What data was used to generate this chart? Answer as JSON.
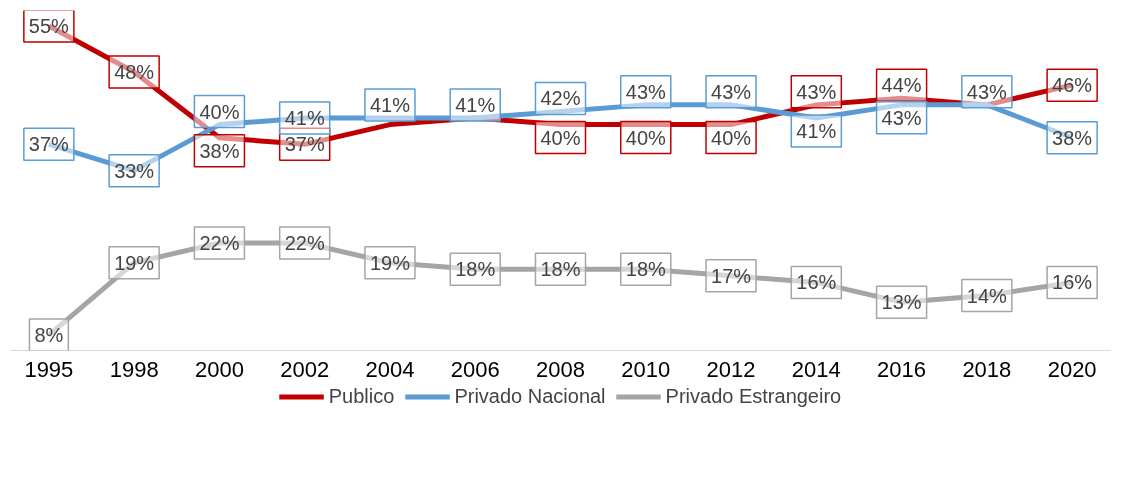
{
  "chart_data": {
    "type": "line",
    "categories": [
      "1995",
      "1998",
      "2000",
      "2002",
      "2004",
      "2006",
      "2008",
      "2010",
      "2012",
      "2014",
      "2016",
      "2018",
      "2020"
    ],
    "series": [
      {
        "name": "Publico",
        "color": "#c00000",
        "values": [
          55,
          48,
          38,
          37,
          40,
          41,
          40,
          40,
          40,
          43,
          44,
          43,
          46
        ],
        "value_labels": [
          "55%",
          "48%",
          "38%",
          "37%",
          null,
          null,
          "40%",
          "40%",
          "40%",
          "43%",
          "44%",
          null,
          "46%"
        ]
      },
      {
        "name": "Privado Nacional",
        "color": "#5b9bd5",
        "values": [
          37,
          33,
          40,
          41,
          41,
          41,
          42,
          43,
          43,
          41,
          43,
          43,
          38
        ],
        "value_labels": [
          "37%",
          "33%",
          "40%",
          "41%",
          "41%",
          "41%",
          "42%",
          "43%",
          "43%",
          "41%",
          "43%",
          "43%",
          "38%"
        ]
      },
      {
        "name": "Privado Estrangeiro",
        "color": "#a5a5a5",
        "values": [
          8,
          19,
          22,
          22,
          19,
          18,
          18,
          18,
          17,
          16,
          13,
          14,
          16
        ],
        "value_labels": [
          "8%",
          "19%",
          "22%",
          "22%",
          "19%",
          "18%",
          "18%",
          "18%",
          "17%",
          "16%",
          "13%",
          "14%",
          "16%"
        ]
      }
    ],
    "legend": "bottom",
    "tick_labels": "x"
  }
}
